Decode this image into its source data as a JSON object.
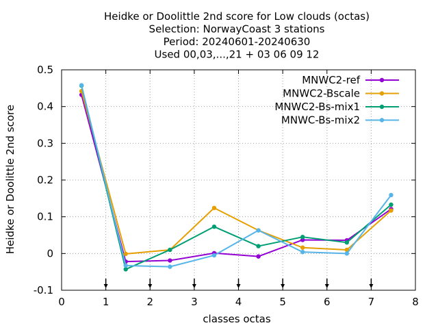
{
  "chart_data": {
    "type": "line",
    "title_lines": [
      "Heidke or Doolittle 2nd score  for Low clouds (octas)",
      "Selection: NorwayCoast      3 stations",
      "Period: 20240601-20240630",
      "Used 00,03,...,21 + 03 06 09 12"
    ],
    "xlabel": "classes octas",
    "ylabel": "Heidke or Doolittle 2nd score",
    "xlim": [
      0,
      8
    ],
    "ylim": [
      -0.1,
      0.5
    ],
    "xticks": [
      "0",
      "1",
      "2",
      "3",
      "4",
      "5",
      "6",
      "7",
      "8"
    ],
    "yticks": [
      "-0.1",
      "0",
      "0.1",
      "0.2",
      "0.3",
      "0.4",
      "0.5"
    ],
    "class_boundary_markers": [
      1,
      2,
      3,
      4,
      5,
      6,
      7
    ],
    "grid": true,
    "legend_position": "top-right",
    "x": [
      0.45,
      1.45,
      2.45,
      3.45,
      4.45,
      5.45,
      6.45,
      7.45
    ],
    "series": [
      {
        "name": "MNWC2-ref",
        "color": "#9400d3",
        "marker": "circle",
        "values": [
          0.432,
          -0.022,
          -0.019,
          0.001,
          -0.008,
          0.037,
          0.036,
          0.121
        ]
      },
      {
        "name": "MNWC2-Bscale",
        "color": "#e69f00",
        "marker": "circle",
        "values": [
          0.442,
          -0.001,
          0.01,
          0.124,
          0.063,
          0.016,
          0.01,
          0.117
        ]
      },
      {
        "name": "MNWC2-Bs-mix1",
        "color": "#009e73",
        "marker": "circle",
        "values": [
          0.457,
          -0.043,
          0.01,
          0.073,
          0.02,
          0.045,
          0.03,
          0.133
        ]
      },
      {
        "name": "MNWC-Bs-mix2",
        "color": "#56b4e9",
        "marker": "circle",
        "values": [
          0.458,
          -0.033,
          -0.036,
          -0.005,
          0.063,
          0.004,
          0.0,
          0.159
        ]
      }
    ]
  }
}
